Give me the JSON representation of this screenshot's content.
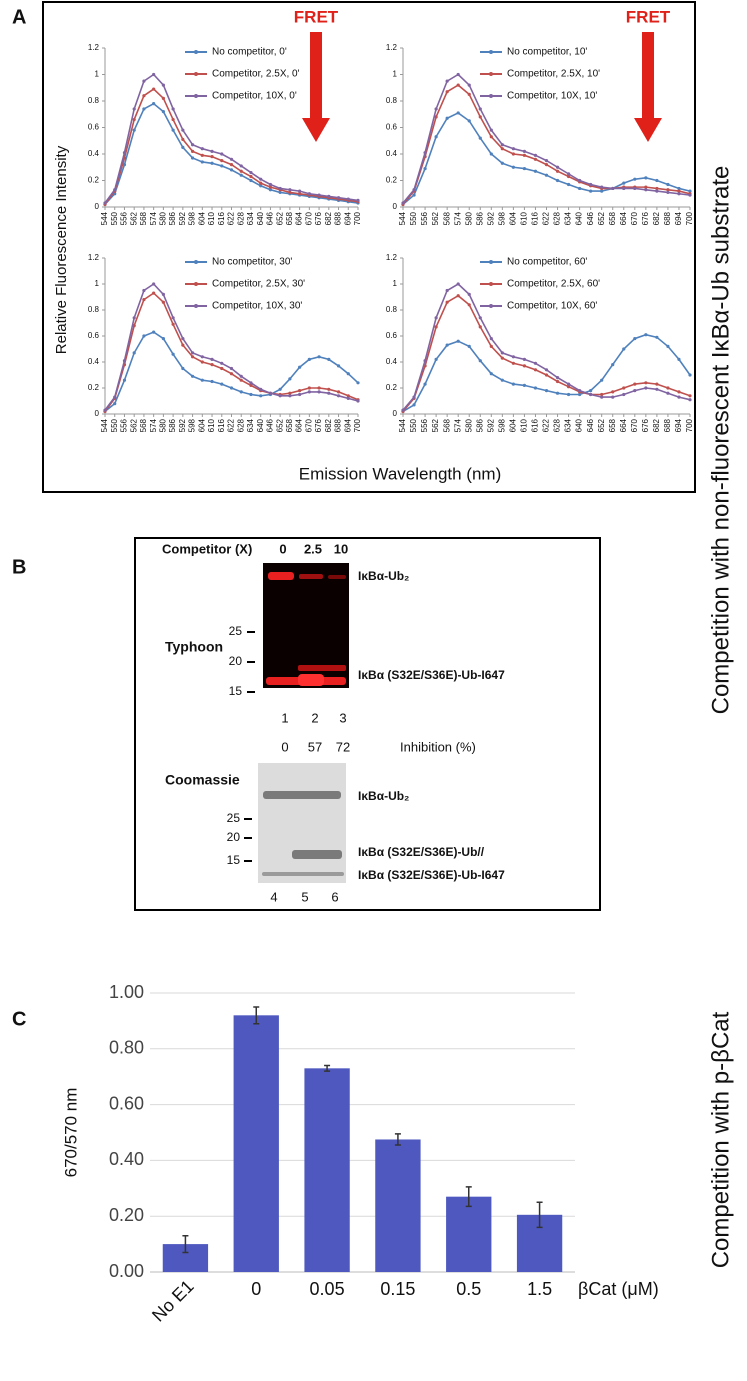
{
  "panel_labels": [
    "A",
    "B",
    "C"
  ],
  "side_labels": [
    "Competition with non-fluorescent IκBα-Ub substrate",
    "Competition with p-βCat"
  ],
  "panel_a": {
    "ylabel": "Relative Fluorescence Intensity",
    "xlabel": "Emission Wavelength (nm)"
  },
  "chart_data": [
    {
      "type": "line",
      "annotation": "FRET",
      "x": [
        544,
        550,
        556,
        562,
        568,
        574,
        580,
        586,
        592,
        598,
        604,
        610,
        616,
        622,
        628,
        634,
        640,
        646,
        652,
        658,
        664,
        670,
        676,
        682,
        688,
        694,
        700
      ],
      "xlim": [
        544,
        700
      ],
      "xticks": [
        544,
        550,
        556,
        562,
        568,
        574,
        580,
        586,
        592,
        598,
        604,
        610,
        616,
        622,
        628,
        634,
        640,
        646,
        652,
        658,
        664,
        670,
        676,
        682,
        688,
        694,
        700
      ],
      "ylim": [
        0,
        1.2
      ],
      "yticks": [
        0,
        0.2,
        0.4,
        0.6,
        0.8,
        1,
        1.2
      ],
      "series": [
        {
          "name": "No competitor, 0'",
          "color": "#4f81bd",
          "values": [
            0.02,
            0.1,
            0.32,
            0.58,
            0.74,
            0.78,
            0.72,
            0.58,
            0.45,
            0.37,
            0.34,
            0.33,
            0.31,
            0.28,
            0.24,
            0.2,
            0.16,
            0.13,
            0.11,
            0.1,
            0.09,
            0.08,
            0.07,
            0.06,
            0.05,
            0.04,
            0.03
          ]
        },
        {
          "name": "Competitor, 2.5X, 0'",
          "color": "#c0504d",
          "values": [
            0.02,
            0.12,
            0.37,
            0.66,
            0.84,
            0.89,
            0.82,
            0.66,
            0.51,
            0.42,
            0.39,
            0.38,
            0.35,
            0.32,
            0.27,
            0.23,
            0.18,
            0.15,
            0.13,
            0.11,
            0.1,
            0.09,
            0.08,
            0.07,
            0.06,
            0.05,
            0.04
          ]
        },
        {
          "name": "Competitor, 10X, 0'",
          "color": "#8064a2",
          "values": [
            0.03,
            0.13,
            0.41,
            0.74,
            0.95,
            1.0,
            0.92,
            0.74,
            0.58,
            0.47,
            0.44,
            0.42,
            0.4,
            0.36,
            0.31,
            0.26,
            0.21,
            0.17,
            0.14,
            0.13,
            0.12,
            0.1,
            0.09,
            0.08,
            0.07,
            0.06,
            0.05
          ]
        }
      ]
    },
    {
      "type": "line",
      "annotation": "FRET",
      "x": [
        544,
        550,
        556,
        562,
        568,
        574,
        580,
        586,
        592,
        598,
        604,
        610,
        616,
        622,
        628,
        634,
        640,
        646,
        652,
        658,
        664,
        670,
        676,
        682,
        688,
        694,
        700
      ],
      "xlim": [
        544,
        700
      ],
      "xticks": [
        544,
        550,
        556,
        562,
        568,
        574,
        580,
        586,
        592,
        598,
        604,
        610,
        616,
        622,
        628,
        634,
        640,
        646,
        652,
        658,
        664,
        670,
        676,
        682,
        688,
        694,
        700
      ],
      "ylim": [
        0,
        1.2
      ],
      "yticks": [
        0,
        0.2,
        0.4,
        0.6,
        0.8,
        1,
        1.2
      ],
      "series": [
        {
          "name": "No competitor, 10'",
          "color": "#4f81bd",
          "values": [
            0.02,
            0.09,
            0.29,
            0.53,
            0.67,
            0.71,
            0.65,
            0.52,
            0.4,
            0.33,
            0.3,
            0.29,
            0.27,
            0.24,
            0.2,
            0.17,
            0.14,
            0.12,
            0.12,
            0.14,
            0.18,
            0.21,
            0.22,
            0.2,
            0.17,
            0.14,
            0.12
          ]
        },
        {
          "name": "Competitor, 2.5X, 10'",
          "color": "#c0504d",
          "values": [
            0.02,
            0.12,
            0.38,
            0.68,
            0.87,
            0.92,
            0.85,
            0.68,
            0.53,
            0.44,
            0.4,
            0.39,
            0.36,
            0.32,
            0.27,
            0.23,
            0.19,
            0.16,
            0.14,
            0.14,
            0.15,
            0.15,
            0.15,
            0.14,
            0.13,
            0.12,
            0.1
          ]
        },
        {
          "name": "Competitor, 10X, 10'",
          "color": "#8064a2",
          "values": [
            0.03,
            0.13,
            0.41,
            0.74,
            0.95,
            1.0,
            0.92,
            0.74,
            0.58,
            0.47,
            0.44,
            0.42,
            0.39,
            0.35,
            0.3,
            0.25,
            0.2,
            0.17,
            0.15,
            0.14,
            0.14,
            0.14,
            0.13,
            0.12,
            0.11,
            0.1,
            0.09
          ]
        }
      ]
    },
    {
      "type": "line",
      "x": [
        544,
        550,
        556,
        562,
        568,
        574,
        580,
        586,
        592,
        598,
        604,
        610,
        616,
        622,
        628,
        634,
        640,
        646,
        652,
        658,
        664,
        670,
        676,
        682,
        688,
        694,
        700
      ],
      "xlim": [
        544,
        700
      ],
      "xticks": [
        544,
        550,
        556,
        562,
        568,
        574,
        580,
        586,
        592,
        598,
        604,
        610,
        616,
        622,
        628,
        634,
        640,
        646,
        652,
        658,
        664,
        670,
        676,
        682,
        688,
        694,
        700
      ],
      "ylim": [
        0,
        1.2
      ],
      "yticks": [
        0,
        0.2,
        0.4,
        0.6,
        0.8,
        1,
        1.2
      ],
      "series": [
        {
          "name": "No competitor, 30'",
          "color": "#4f81bd",
          "values": [
            0.02,
            0.08,
            0.26,
            0.47,
            0.6,
            0.63,
            0.58,
            0.46,
            0.35,
            0.29,
            0.26,
            0.25,
            0.23,
            0.2,
            0.17,
            0.15,
            0.14,
            0.15,
            0.19,
            0.27,
            0.36,
            0.42,
            0.44,
            0.42,
            0.37,
            0.31,
            0.24
          ]
        },
        {
          "name": "Competitor, 2.5X, 30'",
          "color": "#c0504d",
          "values": [
            0.02,
            0.12,
            0.38,
            0.68,
            0.88,
            0.93,
            0.86,
            0.69,
            0.53,
            0.44,
            0.4,
            0.38,
            0.35,
            0.31,
            0.26,
            0.22,
            0.18,
            0.16,
            0.15,
            0.16,
            0.18,
            0.2,
            0.2,
            0.19,
            0.17,
            0.14,
            0.11
          ]
        },
        {
          "name": "Competitor, 10X, 30'",
          "color": "#8064a2",
          "values": [
            0.03,
            0.13,
            0.41,
            0.74,
            0.95,
            1.0,
            0.92,
            0.74,
            0.58,
            0.47,
            0.44,
            0.42,
            0.39,
            0.35,
            0.29,
            0.24,
            0.19,
            0.16,
            0.14,
            0.14,
            0.15,
            0.17,
            0.17,
            0.16,
            0.14,
            0.12,
            0.1
          ]
        }
      ]
    },
    {
      "type": "line",
      "x": [
        544,
        550,
        556,
        562,
        568,
        574,
        580,
        586,
        592,
        598,
        604,
        610,
        616,
        622,
        628,
        634,
        640,
        646,
        652,
        658,
        664,
        670,
        676,
        682,
        688,
        694,
        700
      ],
      "xlim": [
        544,
        700
      ],
      "xticks": [
        544,
        550,
        556,
        562,
        568,
        574,
        580,
        586,
        592,
        598,
        604,
        610,
        616,
        622,
        628,
        634,
        640,
        646,
        652,
        658,
        664,
        670,
        676,
        682,
        688,
        694,
        700
      ],
      "ylim": [
        0,
        1.2
      ],
      "yticks": [
        0,
        0.2,
        0.4,
        0.6,
        0.8,
        1,
        1.2
      ],
      "series": [
        {
          "name": "No competitor, 60'",
          "color": "#4f81bd",
          "values": [
            0.02,
            0.07,
            0.23,
            0.42,
            0.53,
            0.56,
            0.52,
            0.41,
            0.31,
            0.26,
            0.23,
            0.22,
            0.2,
            0.18,
            0.16,
            0.15,
            0.15,
            0.18,
            0.26,
            0.38,
            0.5,
            0.58,
            0.61,
            0.59,
            0.52,
            0.42,
            0.3
          ]
        },
        {
          "name": "Competitor, 2.5X, 60'",
          "color": "#c0504d",
          "values": [
            0.02,
            0.12,
            0.37,
            0.67,
            0.86,
            0.91,
            0.84,
            0.67,
            0.52,
            0.43,
            0.39,
            0.37,
            0.34,
            0.3,
            0.25,
            0.21,
            0.17,
            0.15,
            0.15,
            0.17,
            0.2,
            0.23,
            0.24,
            0.23,
            0.2,
            0.17,
            0.14
          ]
        },
        {
          "name": "Competitor, 10X, 60'",
          "color": "#8064a2",
          "values": [
            0.03,
            0.13,
            0.41,
            0.74,
            0.95,
            1.0,
            0.92,
            0.74,
            0.58,
            0.47,
            0.44,
            0.42,
            0.39,
            0.34,
            0.28,
            0.23,
            0.18,
            0.15,
            0.13,
            0.13,
            0.15,
            0.18,
            0.2,
            0.19,
            0.16,
            0.13,
            0.11
          ]
        }
      ]
    },
    {
      "type": "bar",
      "ylabel": "670/570 nm",
      "xlabel": "βCat (μM)",
      "categories": [
        "No E1",
        "0",
        "0.05",
        "0.15",
        "0.5",
        "1.5"
      ],
      "values": [
        0.1,
        0.92,
        0.73,
        0.475,
        0.27,
        0.205
      ],
      "errors": [
        0.03,
        0.03,
        0.01,
        0.02,
        0.035,
        0.045
      ],
      "color": "#4e58bf",
      "ylim": [
        0,
        1.0
      ],
      "yticks": [
        {
          "value": 0,
          "label": "0.00"
        },
        {
          "value": 0.2,
          "label": "0.20"
        },
        {
          "value": 0.4,
          "label": "0.40"
        },
        {
          "value": 0.6,
          "label": "0.60"
        },
        {
          "value": 0.8,
          "label": "0.80"
        },
        {
          "value": 1.0,
          "label": "1.00"
        }
      ],
      "grid": true
    }
  ],
  "gel": {
    "competitor_label": "Competitor (X)",
    "competitor_levels": [
      0,
      2.5,
      10
    ],
    "typhoon": {
      "label": "Typhoon",
      "markers": [
        25,
        20,
        15
      ],
      "bands": [
        "IκBα-Ub₂",
        "IκBα (S32E/S36E)-Ub-I647"
      ],
      "lanes": [
        1,
        2,
        3
      ]
    },
    "inhibition": {
      "values": [
        0,
        57,
        72
      ],
      "label": "Inhibition (%)"
    },
    "coomassie": {
      "label": "Coomassie",
      "markers": [
        25,
        20,
        15
      ],
      "bands": [
        "IκBα-Ub₂",
        "IκBα (S32E/S36E)-Ub//",
        "IκBα (S32E/S36E)-Ub-I647"
      ],
      "lanes": [
        4,
        5,
        6
      ]
    }
  }
}
